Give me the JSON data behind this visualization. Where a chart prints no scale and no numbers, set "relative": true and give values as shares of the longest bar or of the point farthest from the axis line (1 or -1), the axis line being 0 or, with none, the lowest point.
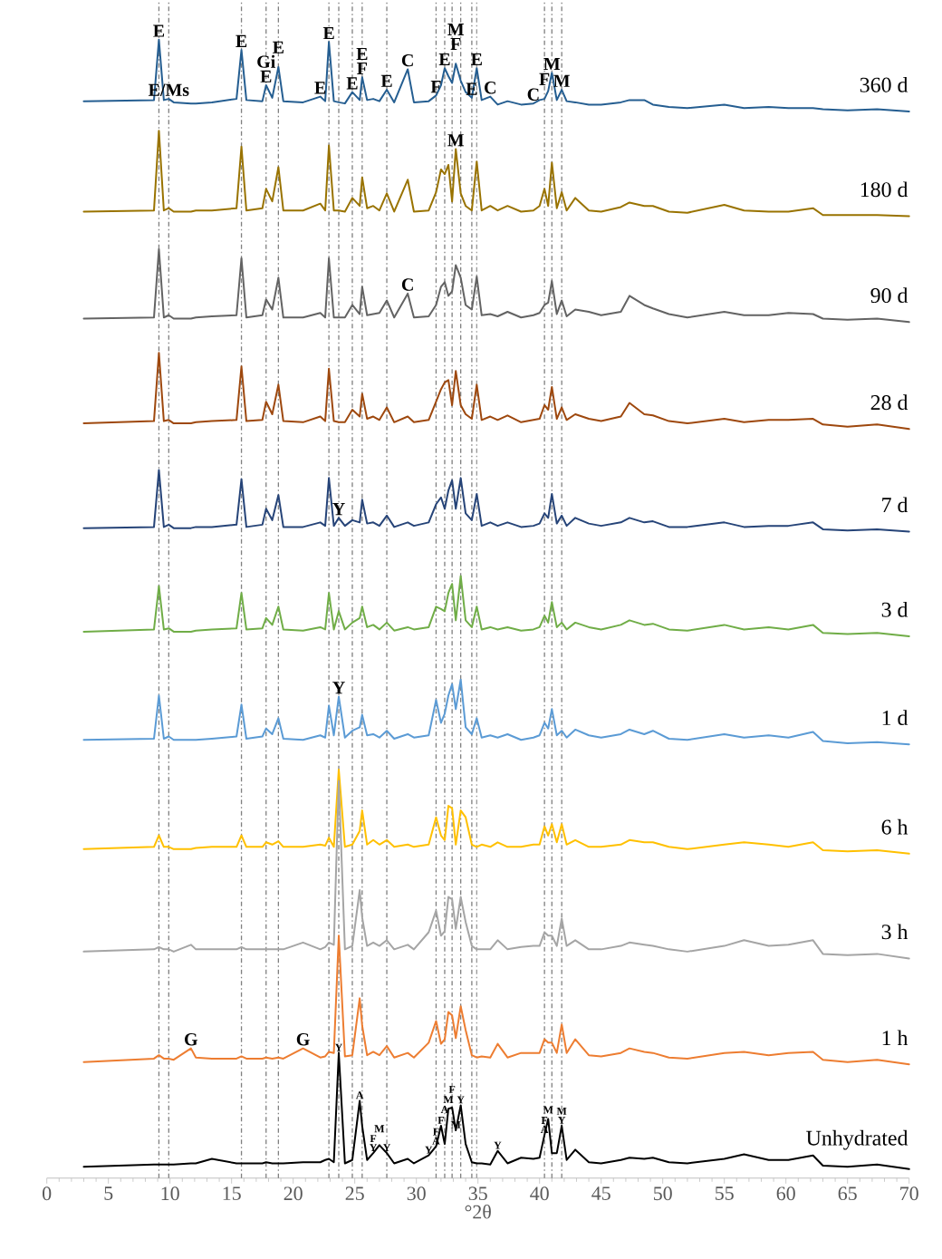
{
  "chart_data": {
    "type": "line",
    "relative": true,
    "xlabel": "°2θ",
    "xlim": [
      0,
      70
    ],
    "xticks": [
      0,
      5,
      10,
      15,
      20,
      25,
      30,
      35,
      40,
      45,
      50,
      55,
      60,
      65,
      70
    ],
    "x": [
      3,
      8.7,
      9.1,
      9.5,
      9.9,
      10.3,
      11.7,
      12.1,
      13.4,
      15.4,
      15.8,
      16.2,
      17.5,
      17.8,
      18.3,
      18.8,
      19.2,
      20.8,
      22.2,
      22.6,
      22.9,
      23.3,
      23.7,
      24.2,
      24.8,
      25.4,
      25.6,
      26.0,
      26.5,
      27.0,
      27.6,
      28.2,
      29.3,
      29.8,
      31.0,
      31.6,
      32.0,
      32.3,
      32.6,
      32.9,
      33.2,
      33.6,
      34.0,
      34.5,
      34.9,
      35.3,
      36.0,
      36.6,
      37.4,
      38.5,
      39.5,
      40.0,
      40.4,
      40.7,
      41.0,
      41.4,
      41.8,
      42.2,
      42.9,
      44,
      45,
      46.6,
      47.3,
      48.5,
      49.2,
      50.5,
      52,
      55,
      56.6,
      58.6,
      60.2,
      62.2,
      63,
      65,
      67.4,
      70
    ],
    "series": [
      {
        "name": "360 d",
        "color": "#255e91",
        "values": [
          0.946,
          0.947,
          1.0,
          0.947,
          0.948,
          0.945,
          0.944,
          0.944,
          0.945,
          0.948,
          0.991,
          0.947,
          0.946,
          0.96,
          0.949,
          0.976,
          0.946,
          0.945,
          0.95,
          0.946,
          0.998,
          0.946,
          0.945,
          0.944,
          0.954,
          0.947,
          0.967,
          0.947,
          0.948,
          0.946,
          0.956,
          0.945,
          0.974,
          0.945,
          0.946,
          0.951,
          0.96,
          0.975,
          0.968,
          0.962,
          0.979,
          0.964,
          0.954,
          0.949,
          0.975,
          0.947,
          0.95,
          0.943,
          0.946,
          0.943,
          0.944,
          0.947,
          0.948,
          0.955,
          0.971,
          0.947,
          0.956,
          0.946,
          0.945,
          0.943,
          0.943,
          0.945,
          0.947,
          0.947,
          0.943,
          0.941,
          0.94,
          0.943,
          0.94,
          0.941,
          0.94,
          0.94,
          0.939,
          0.938,
          0.939,
          0.937
        ]
      },
      {
        "name": "180 d",
        "color": "#997300",
        "values": [
          0.849,
          0.85,
          0.92,
          0.85,
          0.852,
          0.849,
          0.849,
          0.85,
          0.85,
          0.852,
          0.906,
          0.85,
          0.852,
          0.869,
          0.858,
          0.888,
          0.85,
          0.85,
          0.856,
          0.85,
          0.907,
          0.85,
          0.85,
          0.849,
          0.861,
          0.854,
          0.879,
          0.852,
          0.854,
          0.85,
          0.865,
          0.849,
          0.877,
          0.849,
          0.85,
          0.866,
          0.886,
          0.882,
          0.89,
          0.858,
          0.904,
          0.865,
          0.854,
          0.85,
          0.893,
          0.85,
          0.854,
          0.85,
          0.854,
          0.849,
          0.85,
          0.854,
          0.869,
          0.854,
          0.892,
          0.852,
          0.866,
          0.85,
          0.861,
          0.85,
          0.849,
          0.853,
          0.857,
          0.854,
          0.854,
          0.849,
          0.848,
          0.855,
          0.85,
          0.849,
          0.849,
          0.852,
          0.846,
          0.846,
          0.846,
          0.845
        ]
      },
      {
        "name": "90 d",
        "color": "#636363",
        "values": [
          0.755,
          0.756,
          0.816,
          0.756,
          0.758,
          0.755,
          0.755,
          0.756,
          0.757,
          0.758,
          0.808,
          0.756,
          0.758,
          0.772,
          0.763,
          0.791,
          0.756,
          0.756,
          0.76,
          0.756,
          0.808,
          0.756,
          0.756,
          0.756,
          0.767,
          0.759,
          0.783,
          0.758,
          0.759,
          0.76,
          0.771,
          0.756,
          0.777,
          0.756,
          0.757,
          0.767,
          0.783,
          0.787,
          0.775,
          0.779,
          0.802,
          0.791,
          0.767,
          0.763,
          0.792,
          0.758,
          0.759,
          0.757,
          0.761,
          0.756,
          0.758,
          0.76,
          0.767,
          0.769,
          0.788,
          0.759,
          0.771,
          0.757,
          0.763,
          0.761,
          0.758,
          0.761,
          0.775,
          0.767,
          0.764,
          0.759,
          0.756,
          0.761,
          0.758,
          0.758,
          0.76,
          0.759,
          0.755,
          0.754,
          0.755,
          0.752
        ]
      },
      {
        "name": "28 d",
        "color": "#9e480e",
        "values": [
          0.663,
          0.665,
          0.725,
          0.665,
          0.666,
          0.663,
          0.663,
          0.664,
          0.665,
          0.666,
          0.713,
          0.665,
          0.666,
          0.682,
          0.671,
          0.697,
          0.665,
          0.664,
          0.669,
          0.665,
          0.711,
          0.665,
          0.664,
          0.664,
          0.675,
          0.669,
          0.689,
          0.667,
          0.669,
          0.666,
          0.677,
          0.664,
          0.669,
          0.664,
          0.666,
          0.682,
          0.693,
          0.699,
          0.701,
          0.679,
          0.709,
          0.679,
          0.671,
          0.667,
          0.697,
          0.666,
          0.669,
          0.666,
          0.67,
          0.664,
          0.666,
          0.667,
          0.679,
          0.675,
          0.695,
          0.667,
          0.677,
          0.666,
          0.671,
          0.667,
          0.665,
          0.669,
          0.681,
          0.671,
          0.67,
          0.665,
          0.663,
          0.667,
          0.664,
          0.666,
          0.666,
          0.667,
          0.662,
          0.66,
          0.662,
          0.658
        ]
      },
      {
        "name": "7 d",
        "color": "#264478",
        "values": [
          0.571,
          0.572,
          0.622,
          0.572,
          0.574,
          0.571,
          0.571,
          0.572,
          0.572,
          0.574,
          0.614,
          0.572,
          0.574,
          0.588,
          0.578,
          0.6,
          0.572,
          0.572,
          0.576,
          0.573,
          0.615,
          0.573,
          0.58,
          0.573,
          0.578,
          0.576,
          0.596,
          0.575,
          0.576,
          0.573,
          0.582,
          0.572,
          0.576,
          0.573,
          0.576,
          0.592,
          0.598,
          0.588,
          0.604,
          0.613,
          0.588,
          0.615,
          0.584,
          0.578,
          0.601,
          0.573,
          0.576,
          0.573,
          0.576,
          0.572,
          0.573,
          0.575,
          0.584,
          0.58,
          0.601,
          0.575,
          0.582,
          0.573,
          0.58,
          0.575,
          0.573,
          0.576,
          0.58,
          0.576,
          0.577,
          0.572,
          0.572,
          0.576,
          0.572,
          0.573,
          0.573,
          0.576,
          0.57,
          0.569,
          0.57,
          0.568
        ]
      },
      {
        "name": "3 d",
        "color": "#70ad47",
        "values": [
          0.48,
          0.482,
          0.52,
          0.482,
          0.483,
          0.48,
          0.48,
          0.481,
          0.482,
          0.483,
          0.514,
          0.482,
          0.483,
          0.492,
          0.486,
          0.502,
          0.482,
          0.481,
          0.484,
          0.482,
          0.514,
          0.482,
          0.498,
          0.482,
          0.488,
          0.492,
          0.502,
          0.484,
          0.486,
          0.482,
          0.488,
          0.481,
          0.484,
          0.482,
          0.484,
          0.502,
          0.5,
          0.498,
          0.514,
          0.522,
          0.49,
          0.529,
          0.49,
          0.484,
          0.502,
          0.482,
          0.484,
          0.482,
          0.484,
          0.481,
          0.482,
          0.484,
          0.494,
          0.488,
          0.506,
          0.484,
          0.488,
          0.482,
          0.488,
          0.484,
          0.482,
          0.486,
          0.49,
          0.486,
          0.487,
          0.482,
          0.481,
          0.486,
          0.482,
          0.484,
          0.482,
          0.486,
          0.479,
          0.478,
          0.479,
          0.476
        ]
      },
      {
        "name": "1 d",
        "color": "#5b9bd5",
        "values": [
          0.385,
          0.386,
          0.424,
          0.386,
          0.388,
          0.385,
          0.385,
          0.385,
          0.386,
          0.388,
          0.416,
          0.386,
          0.388,
          0.395,
          0.39,
          0.404,
          0.386,
          0.385,
          0.389,
          0.387,
          0.415,
          0.389,
          0.423,
          0.387,
          0.393,
          0.396,
          0.407,
          0.389,
          0.39,
          0.387,
          0.393,
          0.386,
          0.39,
          0.387,
          0.389,
          0.42,
          0.4,
          0.408,
          0.424,
          0.434,
          0.412,
          0.438,
          0.396,
          0.39,
          0.404,
          0.387,
          0.389,
          0.387,
          0.39,
          0.385,
          0.387,
          0.389,
          0.4,
          0.395,
          0.412,
          0.389,
          0.393,
          0.387,
          0.394,
          0.389,
          0.387,
          0.39,
          0.394,
          0.39,
          0.393,
          0.386,
          0.385,
          0.39,
          0.387,
          0.389,
          0.387,
          0.392,
          0.384,
          0.382,
          0.383,
          0.381
        ]
      },
      {
        "name": "6 h",
        "color": "#ffc000",
        "values": [
          0.289,
          0.291,
          0.301,
          0.291,
          0.291,
          0.289,
          0.289,
          0.29,
          0.291,
          0.291,
          0.301,
          0.291,
          0.291,
          0.295,
          0.293,
          0.296,
          0.291,
          0.291,
          0.293,
          0.292,
          0.299,
          0.291,
          0.359,
          0.291,
          0.293,
          0.305,
          0.323,
          0.293,
          0.297,
          0.293,
          0.297,
          0.291,
          0.293,
          0.291,
          0.293,
          0.317,
          0.301,
          0.297,
          0.327,
          0.325,
          0.293,
          0.323,
          0.317,
          0.293,
          0.291,
          0.293,
          0.291,
          0.295,
          0.291,
          0.291,
          0.293,
          0.293,
          0.309,
          0.301,
          0.311,
          0.295,
          0.311,
          0.293,
          0.297,
          0.291,
          0.291,
          0.293,
          0.297,
          0.295,
          0.295,
          0.291,
          0.289,
          0.293,
          0.295,
          0.293,
          0.291,
          0.295,
          0.288,
          0.287,
          0.288,
          0.285
        ]
      },
      {
        "name": "3 h",
        "color": "#a5a5a5",
        "values": [
          0.199,
          0.201,
          0.203,
          0.201,
          0.201,
          0.199,
          0.205,
          0.201,
          0.201,
          0.201,
          0.203,
          0.201,
          0.201,
          0.201,
          0.201,
          0.201,
          0.201,
          0.207,
          0.201,
          0.203,
          0.207,
          0.205,
          0.349,
          0.201,
          0.204,
          0.253,
          0.229,
          0.204,
          0.207,
          0.204,
          0.209,
          0.201,
          0.205,
          0.201,
          0.216,
          0.235,
          0.213,
          0.217,
          0.247,
          0.245,
          0.219,
          0.247,
          0.225,
          0.204,
          0.201,
          0.201,
          0.201,
          0.209,
          0.201,
          0.203,
          0.204,
          0.204,
          0.216,
          0.213,
          0.213,
          0.204,
          0.228,
          0.204,
          0.209,
          0.201,
          0.201,
          0.204,
          0.207,
          0.205,
          0.204,
          0.201,
          0.199,
          0.204,
          0.209,
          0.204,
          0.205,
          0.209,
          0.197,
          0.196,
          0.197,
          0.193
        ]
      },
      {
        "name": "1 h",
        "color": "#ed7d31",
        "values": [
          0.102,
          0.105,
          0.108,
          0.105,
          0.105,
          0.104,
          0.114,
          0.106,
          0.105,
          0.105,
          0.107,
          0.105,
          0.105,
          0.106,
          0.105,
          0.106,
          0.105,
          0.114,
          0.106,
          0.107,
          0.111,
          0.11,
          0.213,
          0.107,
          0.108,
          0.158,
          0.134,
          0.108,
          0.111,
          0.108,
          0.116,
          0.106,
          0.11,
          0.106,
          0.119,
          0.138,
          0.118,
          0.122,
          0.146,
          0.143,
          0.123,
          0.151,
          0.13,
          0.108,
          0.106,
          0.107,
          0.106,
          0.118,
          0.106,
          0.11,
          0.11,
          0.11,
          0.122,
          0.119,
          0.119,
          0.11,
          0.135,
          0.11,
          0.122,
          0.108,
          0.107,
          0.11,
          0.114,
          0.111,
          0.11,
          0.106,
          0.105,
          0.11,
          0.111,
          0.108,
          0.11,
          0.111,
          0.104,
          0.102,
          0.104,
          0.1
        ]
      },
      {
        "name": "Unhydrated",
        "color": "#000000",
        "values": [
          0.01,
          0.012,
          0.012,
          0.012,
          0.012,
          0.012,
          0.013,
          0.013,
          0.017,
          0.013,
          0.013,
          0.013,
          0.013,
          0.014,
          0.013,
          0.013,
          0.013,
          0.014,
          0.014,
          0.016,
          0.017,
          0.014,
          0.11,
          0.013,
          0.016,
          0.068,
          0.046,
          0.016,
          0.022,
          0.029,
          0.022,
          0.013,
          0.017,
          0.013,
          0.02,
          0.028,
          0.046,
          0.03,
          0.061,
          0.062,
          0.042,
          0.064,
          0.03,
          0.014,
          0.013,
          0.013,
          0.012,
          0.024,
          0.013,
          0.018,
          0.017,
          0.018,
          0.038,
          0.052,
          0.022,
          0.022,
          0.046,
          0.016,
          0.025,
          0.014,
          0.013,
          0.016,
          0.018,
          0.017,
          0.018,
          0.014,
          0.013,
          0.017,
          0.021,
          0.016,
          0.016,
          0.02,
          0.011,
          0.01,
          0.012,
          0.008
        ]
      }
    ],
    "ref_lines": [
      {
        "axis": "x",
        "value": 9.1,
        "color": "#7f7f7f",
        "line_style": "dashed"
      },
      {
        "axis": "x",
        "value": 9.9,
        "color": "#7f7f7f",
        "line_style": "dashed"
      },
      {
        "axis": "x",
        "value": 15.8,
        "color": "#7f7f7f",
        "line_style": "dashed"
      },
      {
        "axis": "x",
        "value": 17.8,
        "color": "#7f7f7f",
        "line_style": "dashed"
      },
      {
        "axis": "x",
        "value": 18.8,
        "color": "#7f7f7f",
        "line_style": "dashed"
      },
      {
        "axis": "x",
        "value": 22.9,
        "color": "#7f7f7f",
        "line_style": "dashed"
      },
      {
        "axis": "x",
        "value": 23.7,
        "color": "#7f7f7f",
        "line_style": "dashed"
      },
      {
        "axis": "x",
        "value": 24.8,
        "color": "#7f7f7f",
        "line_style": "dashed"
      },
      {
        "axis": "x",
        "value": 25.6,
        "color": "#7f7f7f",
        "line_style": "dashed"
      },
      {
        "axis": "x",
        "value": 27.6,
        "color": "#7f7f7f",
        "line_style": "dashed"
      },
      {
        "axis": "x",
        "value": 31.6,
        "color": "#7f7f7f",
        "line_style": "dashed"
      },
      {
        "axis": "x",
        "value": 32.3,
        "color": "#7f7f7f",
        "line_style": "dashed"
      },
      {
        "axis": "x",
        "value": 32.9,
        "color": "#7f7f7f",
        "line_style": "dashed"
      },
      {
        "axis": "x",
        "value": 33.6,
        "color": "#7f7f7f",
        "line_style": "dashed"
      },
      {
        "axis": "x",
        "value": 34.5,
        "color": "#7f7f7f",
        "line_style": "dashed"
      },
      {
        "axis": "x",
        "value": 34.9,
        "color": "#9a9a9a",
        "line_style": "dashed"
      },
      {
        "axis": "x",
        "value": 40.4,
        "color": "#7f7f7f",
        "line_style": "dashed"
      },
      {
        "axis": "x",
        "value": 41.0,
        "color": "#7f7f7f",
        "line_style": "dashed"
      },
      {
        "axis": "x",
        "value": 41.8,
        "color": "#7f7f7f",
        "line_style": "dashed"
      }
    ],
    "annotations": [
      {
        "text": "E",
        "x": 9.1,
        "y": 1.0
      },
      {
        "text": "E/Ms",
        "x": 9.9,
        "y": 0.948
      },
      {
        "text": "E",
        "x": 15.8,
        "y": 0.991
      },
      {
        "text": "E",
        "x": 17.8,
        "y": 0.96
      },
      {
        "text": "Gi",
        "x": 17.8,
        "y": 0.96
      },
      {
        "text": "E",
        "x": 18.8,
        "y": 0.976
      },
      {
        "text": "E",
        "x": 22.2,
        "y": 0.95
      },
      {
        "text": "E",
        "x": 22.9,
        "y": 0.998
      },
      {
        "text": "E",
        "x": 24.8,
        "y": 0.954
      },
      {
        "text": "F",
        "x": 25.6,
        "y": 0.967
      },
      {
        "text": "E",
        "x": 25.6,
        "y": 0.967
      },
      {
        "text": "E",
        "x": 27.6,
        "y": 0.956
      },
      {
        "text": "C",
        "x": 29.3,
        "y": 0.974
      },
      {
        "text": "F",
        "x": 31.6,
        "y": 0.951
      },
      {
        "text": "E",
        "x": 32.3,
        "y": 0.975
      },
      {
        "text": "F",
        "x": 33.2,
        "y": 0.979
      },
      {
        "text": "M",
        "x": 33.2,
        "y": 0.979
      },
      {
        "text": "E",
        "x": 34.5,
        "y": 0.949
      },
      {
        "text": "E",
        "x": 34.9,
        "y": 0.975
      },
      {
        "text": "C",
        "x": 36.0,
        "y": 0.95
      },
      {
        "text": "C",
        "x": 39.5,
        "y": 0.944
      },
      {
        "text": "F",
        "x": 40.4,
        "y": 0.948
      },
      {
        "text": "M",
        "x": 41.0,
        "y": 0.971
      },
      {
        "text": "M",
        "x": 41.8,
        "y": 0.956
      },
      {
        "text": "M",
        "x": 33.2,
        "y": 0.904
      },
      {
        "text": "C",
        "x": 29.3,
        "y": 0.777
      },
      {
        "text": "Y",
        "x": 23.7,
        "y": 0.58
      },
      {
        "text": "Y",
        "x": 23.7,
        "y": 0.423
      },
      {
        "text": "G",
        "x": 11.7,
        "y": 0.114
      },
      {
        "text": "G",
        "x": 20.8,
        "y": 0.114
      },
      {
        "text": "Y",
        "x": 23.7,
        "y": 0.11
      },
      {
        "text": "A",
        "x": 25.4,
        "y": 0.068
      },
      {
        "text": "Y",
        "x": 26.5,
        "y": 0.022
      },
      {
        "text": "F",
        "x": 26.5,
        "y": 0.022
      },
      {
        "text": "M",
        "x": 27.0,
        "y": 0.029
      },
      {
        "text": "Y",
        "x": 27.6,
        "y": 0.022
      },
      {
        "text": "Y",
        "x": 31.0,
        "y": 0.02
      },
      {
        "text": "A",
        "x": 31.6,
        "y": 0.028
      },
      {
        "text": "F",
        "x": 31.6,
        "y": 0.028
      },
      {
        "text": "F",
        "x": 32.0,
        "y": 0.046
      },
      {
        "text": "A",
        "x": 32.3,
        "y": 0.03
      },
      {
        "text": "M",
        "x": 32.6,
        "y": 0.061
      },
      {
        "text": "F",
        "x": 32.9,
        "y": 0.062
      },
      {
        "text": "M",
        "x": 33.2,
        "y": 0.042
      },
      {
        "text": "Y",
        "x": 33.6,
        "y": 0.064
      },
      {
        "text": "Y",
        "x": 36.6,
        "y": 0.024
      },
      {
        "text": "A",
        "x": 40.4,
        "y": 0.038
      },
      {
        "text": "F",
        "x": 40.4,
        "y": 0.038
      },
      {
        "text": "M",
        "x": 40.7,
        "y": 0.052
      },
      {
        "text": "Y",
        "x": 41.8,
        "y": 0.046
      },
      {
        "text": "M",
        "x": 41.8,
        "y": 0.046
      }
    ]
  }
}
